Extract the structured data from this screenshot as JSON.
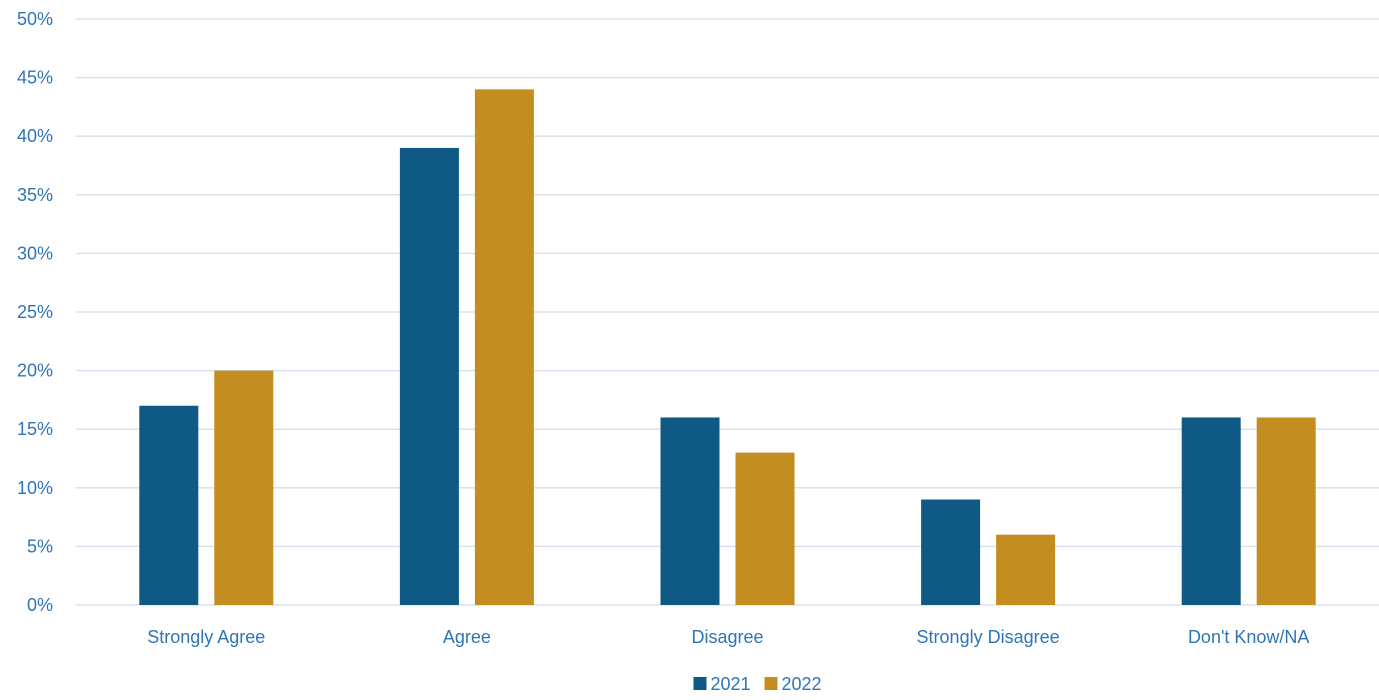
{
  "chart_data": {
    "type": "bar",
    "categories": [
      "Strongly Agree",
      "Agree",
      "Disagree",
      "Strongly Disagree",
      "Don't Know/NA"
    ],
    "series": [
      {
        "name": "2021",
        "values": [
          17,
          39,
          16,
          9,
          16
        ]
      },
      {
        "name": "2022",
        "values": [
          20,
          44,
          13,
          6,
          16
        ]
      }
    ],
    "ylim": [
      0,
      50
    ],
    "y_ticks": [
      0,
      5,
      10,
      15,
      20,
      25,
      30,
      35,
      40,
      45,
      50
    ],
    "y_tick_suffix": "%",
    "grid": true,
    "legend_position": "bottom"
  },
  "colors": {
    "series": [
      "#0e5a85",
      "#c48d20"
    ],
    "text": "#2e75b6",
    "grid": "#d4deec"
  }
}
